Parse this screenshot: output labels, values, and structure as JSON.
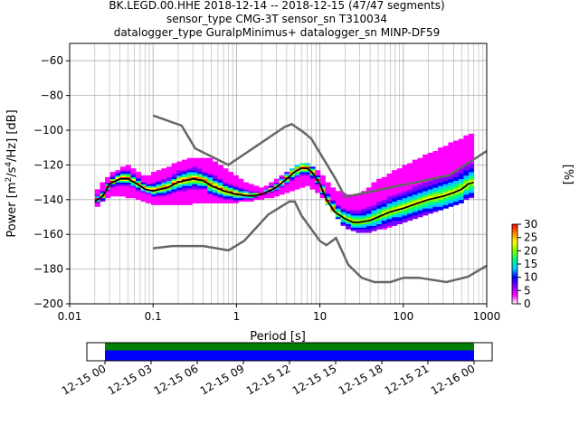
{
  "title_lines": [
    "BK.LEGD.00.HHE   2018-12-14 -- 2018-12-15  (47/47 segments)",
    "sensor_type CMG-3T sensor_sn T310034",
    "datalogger_type GuralpMinimus+ datalogger_sn MINP-DF59"
  ],
  "colors": {
    "noise_model": "#666666",
    "mean_curve": "#000000",
    "grid": "#b0b0b0",
    "coverage_top": "#008000",
    "coverage_bottom": "#0000ff"
  },
  "chart_data": [
    {
      "type": "heatmap",
      "subtype": "probabilistic-power-spectral-density",
      "xlabel": "Period [s]",
      "ylabel": "Power [m^2/s^4/Hz] [dB]",
      "x_scale": "log",
      "xlim": [
        0.01,
        1000
      ],
      "ylim": [
        -200,
        -50
      ],
      "x_ticks": [
        {
          "value": 0.01,
          "label": "0.01"
        },
        {
          "value": 0.1,
          "label": "0.1"
        },
        {
          "value": 1,
          "label": "1"
        },
        {
          "value": 10,
          "label": "10"
        },
        {
          "value": 100,
          "label": "100"
        },
        {
          "value": 1000,
          "label": "1000"
        }
      ],
      "y_ticks": [
        -60,
        -80,
        -100,
        -120,
        -140,
        -160,
        -180,
        -200
      ],
      "grid": true,
      "noise_models": [
        {
          "name": "NHNM",
          "x": [
            0.1,
            0.22,
            0.32,
            0.8,
            3.8,
            4.6,
            6.3,
            7.9,
            15.4,
            20,
            354.8,
            1000
          ],
          "y": [
            -91.5,
            -97.4,
            -110.5,
            -120,
            -98,
            -96.5,
            -101,
            -105,
            -128,
            -138.5,
            -126,
            -112
          ]
        },
        {
          "name": "NLNM",
          "x": [
            0.1,
            0.17,
            0.4,
            0.8,
            1.24,
            2.4,
            4.3,
            5,
            6,
            10,
            12,
            15.6,
            21.9,
            31.6,
            45,
            70,
            101,
            154,
            328,
            600,
            1000
          ],
          "y": [
            -168,
            -166.7,
            -166.7,
            -169.2,
            -163.7,
            -148.6,
            -141.1,
            -141.1,
            -149,
            -163.8,
            -166.2,
            -162.1,
            -177.5,
            -185,
            -187.5,
            -187.5,
            -185,
            -185,
            -187.5,
            -184.4,
            -178
          ]
        }
      ],
      "mean": {
        "x": [
          0.02,
          0.025,
          0.03,
          0.04,
          0.05,
          0.06,
          0.08,
          0.1,
          0.15,
          0.2,
          0.3,
          0.4,
          0.5,
          0.7,
          1,
          1.5,
          2,
          3,
          4,
          5,
          6,
          7,
          8,
          10,
          12,
          15,
          20,
          25,
          30,
          40,
          50,
          70,
          100,
          150,
          200,
          300,
          400,
          500,
          600,
          700
        ],
        "y": [
          -141,
          -138,
          -131,
          -128,
          -128,
          -130,
          -134,
          -135,
          -133,
          -130,
          -128,
          -129,
          -132,
          -135,
          -137,
          -138,
          -137,
          -133,
          -128,
          -124,
          -122,
          -122,
          -124,
          -131,
          -140,
          -147,
          -151,
          -153,
          -153,
          -152,
          -150,
          -147,
          -145,
          -142,
          -140,
          -138,
          -136,
          -134,
          -131,
          -130
        ]
      },
      "psd_spread": {
        "x": [
          0.02,
          0.03,
          0.05,
          0.08,
          0.1,
          0.2,
          0.3,
          0.5,
          0.7,
          1,
          1.5,
          2,
          3,
          5,
          7,
          10,
          15,
          20,
          30,
          50,
          100,
          200,
          500,
          700
        ],
        "upper": [
          -137,
          -127,
          -121,
          -128,
          -126,
          -120,
          -117,
          -118,
          -123,
          -128,
          -133,
          -135,
          -130,
          -122,
          -120,
          -126,
          -136,
          -138,
          -138,
          -130,
          -122,
          -115,
          -106,
          -103
        ],
        "lower": [
          -145,
          -137,
          -138,
          -141,
          -142,
          -143,
          -142,
          -141,
          -142,
          -141,
          -140,
          -139,
          -138,
          -134,
          -131,
          -136,
          -148,
          -156,
          -159,
          -157,
          -153,
          -148,
          -141,
          -138
        ]
      },
      "colorbar": {
        "label": "[%]",
        "ticks": [
          0,
          5,
          10,
          15,
          20,
          25,
          30
        ],
        "range": [
          0,
          30
        ],
        "colormap": [
          "#ffffff",
          "#ff00ff",
          "#8000ff",
          "#0000ff",
          "#00ccff",
          "#00ff80",
          "#80ff00",
          "#ffff00",
          "#ff8000",
          "#ff0000"
        ]
      }
    },
    {
      "type": "bar",
      "subtype": "data-coverage-timeline",
      "x_ticks": [
        "12-15 00",
        "12-15 03",
        "12-15 06",
        "12-15 09",
        "12-15 12",
        "12-15 15",
        "12-15 18",
        "12-15 21",
        "12-16 00"
      ],
      "coverage": [
        {
          "row": "top",
          "color": "#008000",
          "start_fraction": 0.0,
          "end_fraction": 1.0
        },
        {
          "row": "bottom",
          "color": "#0000ff",
          "start_fraction": 0.0,
          "end_fraction": 1.0
        }
      ]
    }
  ]
}
